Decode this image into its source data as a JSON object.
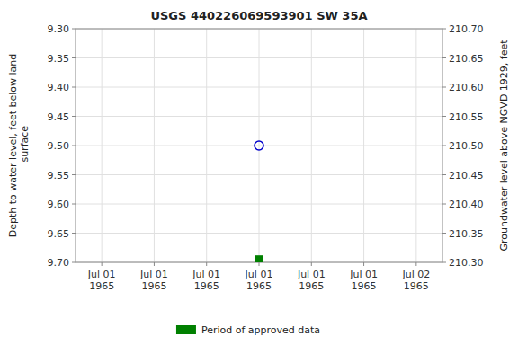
{
  "chart_data": {
    "type": "scatter",
    "title": "USGS 440226069593901 SW   35A",
    "y_label": "Depth to water level, feet below land\n surface",
    "y2_label": "Groundwater level above NGVD 1929, feet",
    "categories": [
      "Jul 01\n1965",
      "Jul 01\n1965",
      "Jul 01\n1965",
      "Jul 01\n1965",
      "Jul 01\n1965",
      "Jul 01\n1965",
      "Jul 02\n1965"
    ],
    "series": [
      {
        "color": "#0000cc",
        "marker": "circle",
        "values": [
          null,
          null,
          null,
          9.5,
          null,
          null,
          null
        ]
      },
      {
        "name": "Period of approved data",
        "color": "#008000",
        "marker": "square",
        "values": [
          null,
          null,
          null,
          9.695,
          null,
          null,
          null
        ]
      }
    ],
    "ylim": [
      9.7,
      9.3
    ],
    "yticks": [
      {
        "value": 9.3,
        "label": "9.30"
      },
      9.35,
      {
        "value": 9.4,
        "label": "9.40"
      },
      9.45,
      {
        "value": 9.5,
        "label": "9.50"
      },
      9.55,
      {
        "value": 9.6,
        "label": "9.60"
      },
      9.65,
      {
        "value": 9.7,
        "label": "9.70"
      }
    ],
    "y2lim": [
      210.3,
      210.7
    ],
    "y2ticks": [
      {
        "value": 210.7,
        "label": "210.70"
      },
      210.65,
      {
        "value": 210.6,
        "label": "210.60"
      },
      210.55,
      {
        "value": 210.5,
        "label": "210.50"
      },
      210.45,
      {
        "value": 210.4,
        "label": "210.40"
      },
      210.35,
      {
        "value": 210.3,
        "label": "210.30"
      }
    ],
    "grid": true,
    "legend": "bottom"
  }
}
